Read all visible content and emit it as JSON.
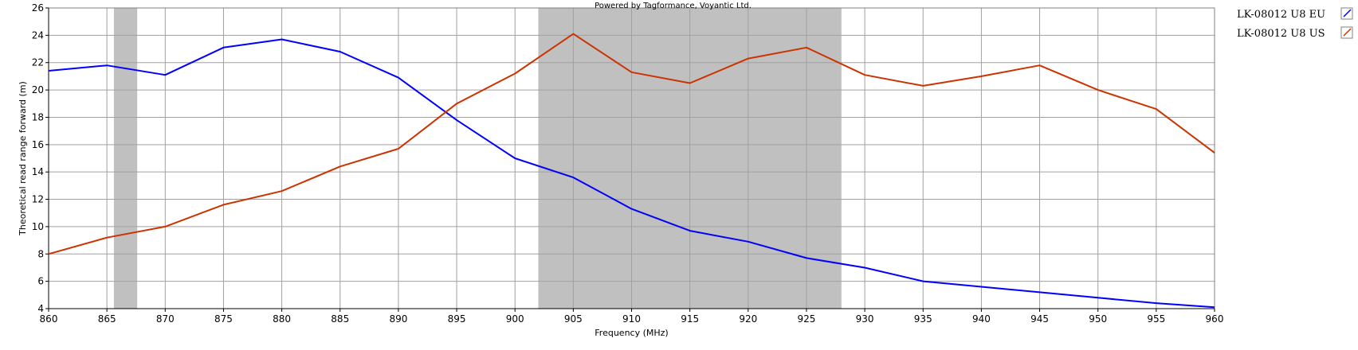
{
  "chart_data": {
    "type": "line",
    "watermark": "Powered by Tagformance, Voyantic Ltd.",
    "xlabel": "Frequency (MHz)",
    "ylabel": "Theoretical read range forward (m)",
    "xlim": [
      860,
      960
    ],
    "ylim": [
      4,
      26
    ],
    "x_ticks": [
      860,
      865,
      870,
      875,
      880,
      885,
      890,
      895,
      900,
      905,
      910,
      915,
      920,
      925,
      930,
      935,
      940,
      945,
      950,
      955,
      960
    ],
    "y_ticks": [
      4,
      6,
      8,
      10,
      12,
      14,
      16,
      18,
      20,
      22,
      24,
      26
    ],
    "x_tick_labels": [
      "860",
      "865",
      "870",
      "875",
      "880",
      "885",
      "890",
      "895",
      "900",
      "905",
      "910",
      "915",
      "920",
      "925",
      "930",
      "935",
      "940",
      "945",
      "950",
      "955",
      "960"
    ],
    "y_tick_labels": [
      "4",
      "6",
      "8",
      "10",
      "12",
      "14",
      "16",
      "18",
      "20",
      "22",
      "24",
      "26"
    ],
    "grid": true,
    "legend_position": "right",
    "shaded_bands": [
      {
        "x_start": 865.6,
        "x_end": 867.6,
        "color": "#c0c0c0"
      },
      {
        "x_start": 902,
        "x_end": 928,
        "color": "#c0c0c0"
      }
    ],
    "x": [
      860,
      865,
      870,
      875,
      880,
      885,
      890,
      895,
      900,
      905,
      910,
      915,
      920,
      925,
      930,
      935,
      940,
      945,
      950,
      955,
      960
    ],
    "series": [
      {
        "name": "LK-08012 U8 EU",
        "color": "#0000ff",
        "values": [
          21.4,
          21.8,
          21.1,
          23.1,
          23.7,
          22.8,
          20.9,
          17.8,
          15.0,
          13.6,
          11.3,
          9.7,
          8.9,
          7.7,
          7.0,
          6.0,
          5.6,
          5.2,
          4.8,
          4.4,
          4.1
        ]
      },
      {
        "name": "LK-08012 U8 US",
        "color": "#cc3300",
        "values": [
          8.0,
          9.2,
          10.0,
          11.6,
          12.6,
          14.4,
          15.7,
          19.0,
          21.2,
          24.1,
          21.3,
          20.5,
          22.3,
          23.1,
          21.1,
          20.3,
          21.0,
          21.8,
          20.0,
          18.6,
          15.4
        ]
      }
    ]
  }
}
